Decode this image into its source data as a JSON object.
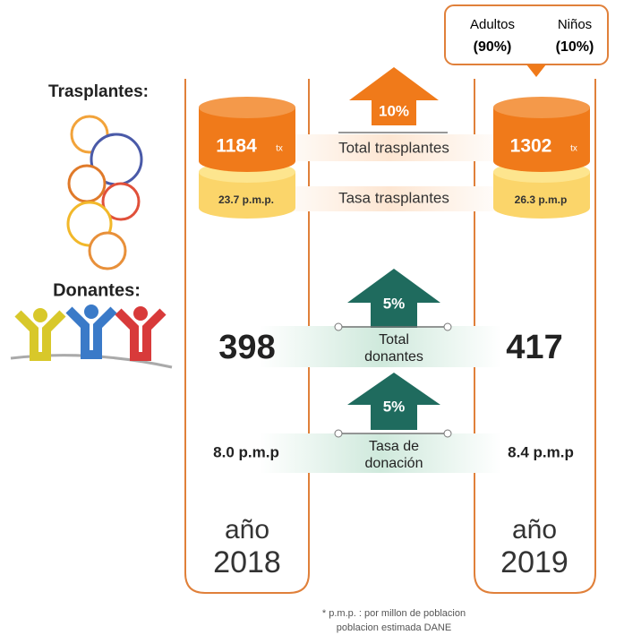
{
  "callout": {
    "adults": "Adultos",
    "adults_pct": "(90%)",
    "children": "Niños",
    "children_pct": "(10%)"
  },
  "transplants": {
    "label": "Trasplantes:",
    "change": "10%",
    "total_label": "Total trasplantes",
    "rate_label": "Tasa trasplantes",
    "y2018": {
      "total": "1184",
      "unit": "tx",
      "rate": "23.7 p.m.p."
    },
    "y2019": {
      "total": "1302",
      "unit": "tx",
      "rate": "26.3 p.m.p"
    }
  },
  "donors": {
    "label": "Donantes:",
    "total_change": "5%",
    "total_label": [
      "Total",
      "donantes"
    ],
    "rate_change": "5%",
    "rate_label": [
      "Tasa de",
      "donación"
    ],
    "y2018": {
      "total": "398",
      "rate": "8.0 p.m.p"
    },
    "y2019": {
      "total": "417",
      "rate": "8.4 p.m.p"
    }
  },
  "years": [
    {
      "label": "año",
      "year": "2018"
    },
    {
      "label": "año",
      "year": "2019"
    }
  ],
  "footnote": [
    "* p.m.p. : por millon de poblacion",
    "poblacion estimada DANE"
  ]
}
